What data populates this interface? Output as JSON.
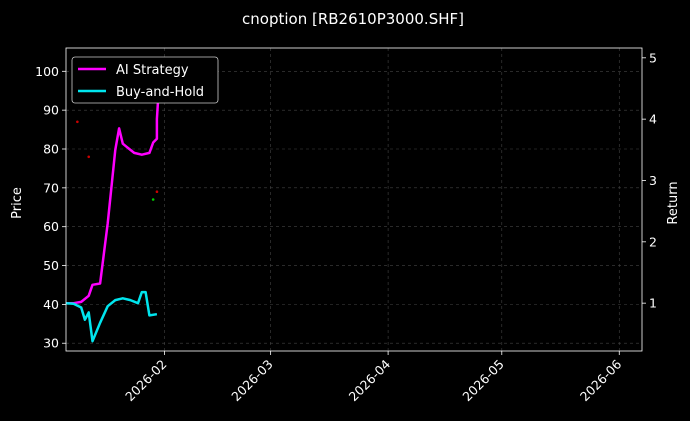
{
  "colors": {
    "background": "#000000",
    "ai_strategy": "#ff00ff",
    "buy_and_hold": "#00e5ee",
    "grid": "#444444",
    "text": "#ffffff",
    "buy_marker": "#00cc00",
    "sell_marker": "#cc0000"
  },
  "chart_data": {
    "type": "line",
    "title": "cnoption [RB2610P3000.SHF]",
    "ylabel_left": "Price",
    "ylabel_right": "Return",
    "xlim": [
      "2026-01-06",
      "2026-06-07"
    ],
    "ylim_left": [
      28,
      106
    ],
    "ylim_right": [
      0.22,
      5.16
    ],
    "left_ticks": [
      "30",
      "40",
      "50",
      "60",
      "70",
      "80",
      "90",
      "100"
    ],
    "right_ticks": [
      "1",
      "2",
      "3",
      "4",
      "5"
    ],
    "x_ticks": [
      "2026-02",
      "2026-03",
      "2026-04",
      "2026-05",
      "2026-06"
    ],
    "grid": true,
    "legend_position": "top-left",
    "series": [
      {
        "name": "AI Strategy",
        "axis": "right",
        "color": "#ff00ff",
        "points": [
          [
            "2026-01-06",
            1.0
          ],
          [
            "2026-01-08",
            1.0
          ],
          [
            "2026-01-10",
            1.02
          ],
          [
            "2026-01-12",
            1.12
          ],
          [
            "2026-01-13",
            1.3
          ],
          [
            "2026-01-15",
            1.32
          ],
          [
            "2026-01-17",
            2.3
          ],
          [
            "2026-01-19",
            3.5
          ],
          [
            "2026-01-20",
            3.85
          ],
          [
            "2026-01-21",
            3.6
          ],
          [
            "2026-01-22",
            3.55
          ],
          [
            "2026-01-24",
            3.45
          ],
          [
            "2026-01-26",
            3.42
          ],
          [
            "2026-01-28",
            3.45
          ],
          [
            "2026-01-29",
            3.62
          ],
          [
            "2026-01-30",
            3.68
          ],
          [
            "2026-01-30",
            4.0
          ],
          [
            "2026-01-31",
            5.0
          ]
        ]
      },
      {
        "name": "Buy-and-Hold",
        "axis": "right",
        "color": "#00e5ee",
        "points": [
          [
            "2026-01-06",
            1.0
          ],
          [
            "2026-01-08",
            0.99
          ],
          [
            "2026-01-10",
            0.93
          ],
          [
            "2026-01-11",
            0.73
          ],
          [
            "2026-01-12",
            0.85
          ],
          [
            "2026-01-13",
            0.38
          ],
          [
            "2026-01-15",
            0.68
          ],
          [
            "2026-01-17",
            0.95
          ],
          [
            "2026-01-19",
            1.05
          ],
          [
            "2026-01-21",
            1.08
          ],
          [
            "2026-01-23",
            1.05
          ],
          [
            "2026-01-25",
            1.0
          ],
          [
            "2026-01-26",
            1.18
          ],
          [
            "2026-01-27",
            1.18
          ],
          [
            "2026-01-28",
            0.8
          ],
          [
            "2026-01-30",
            0.82
          ]
        ]
      }
    ],
    "trade_markers": [
      {
        "type": "sell",
        "date": "2026-01-09",
        "price": 87
      },
      {
        "type": "sell",
        "date": "2026-01-12",
        "price": 78
      },
      {
        "type": "buy",
        "date": "2026-01-29",
        "price": 67
      },
      {
        "type": "sell",
        "date": "2026-01-30",
        "price": 69
      }
    ]
  }
}
